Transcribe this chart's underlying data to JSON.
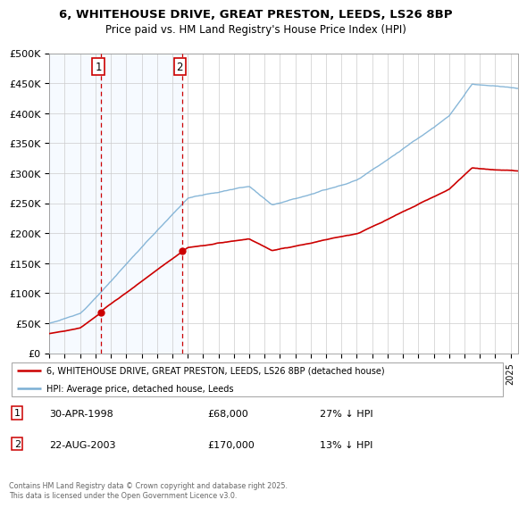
{
  "title1": "6, WHITEHOUSE DRIVE, GREAT PRESTON, LEEDS, LS26 8BP",
  "title2": "Price paid vs. HM Land Registry's House Price Index (HPI)",
  "legend_line1": "6, WHITEHOUSE DRIVE, GREAT PRESTON, LEEDS, LS26 8BP (detached house)",
  "legend_line2": "HPI: Average price, detached house, Leeds",
  "sale1_date": "30-APR-1998",
  "sale1_price": 68000,
  "sale1_label": "27% ↓ HPI",
  "sale2_date": "22-AUG-2003",
  "sale2_price": 170000,
  "sale2_label": "13% ↓ HPI",
  "footnote": "Contains HM Land Registry data © Crown copyright and database right 2025.\nThis data is licensed under the Open Government Licence v3.0.",
  "property_color": "#cc0000",
  "hpi_color": "#7bafd4",
  "sale_vline_color": "#cc0000",
  "shade_color": "#ddeeff",
  "ylim": [
    0,
    500000
  ],
  "yticks": [
    0,
    50000,
    100000,
    150000,
    200000,
    250000,
    300000,
    350000,
    400000,
    450000,
    500000
  ],
  "ytick_labels": [
    "£0",
    "£50K",
    "£100K",
    "£150K",
    "£200K",
    "£250K",
    "£300K",
    "£350K",
    "£400K",
    "£450K",
    "£500K"
  ],
  "sale1_year": 1998.33,
  "sale2_year": 2003.64,
  "xmin": 1995,
  "xmax": 2025.5
}
